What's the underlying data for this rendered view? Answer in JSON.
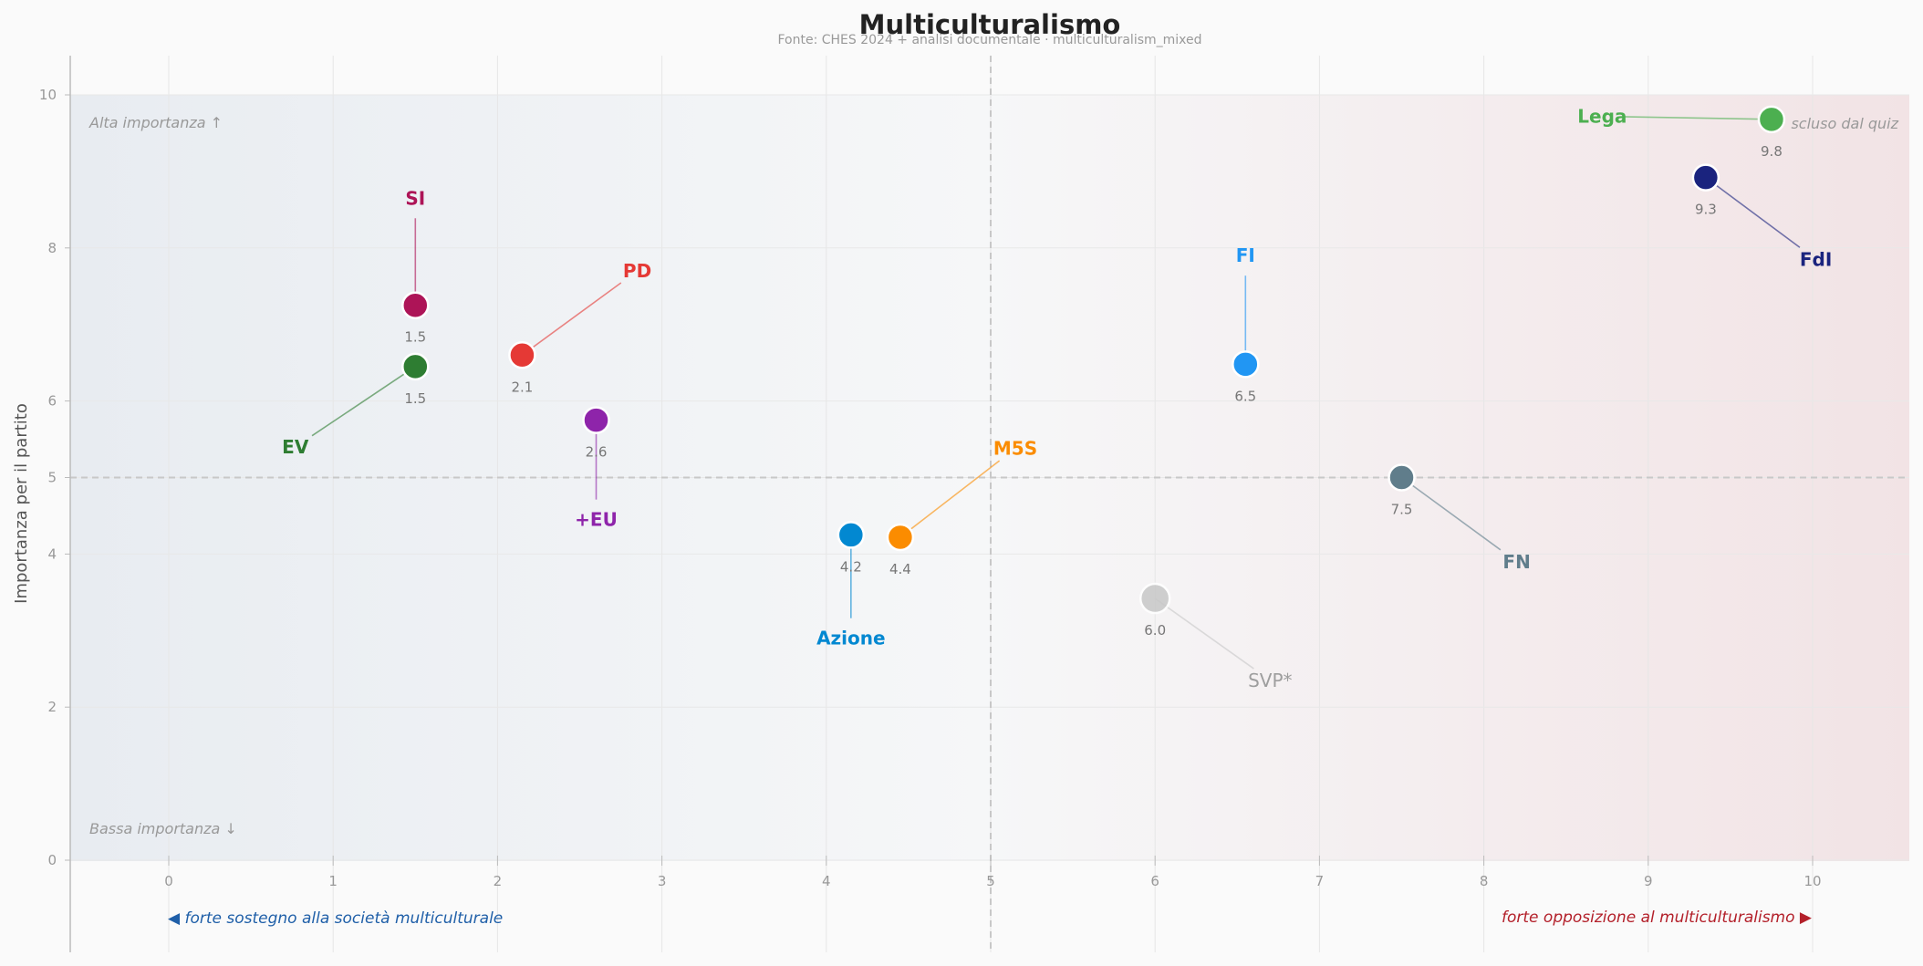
{
  "chart_data": {
    "type": "scatter",
    "title": "Multiculturalismo",
    "subtitle": "Fonte: CHES 2024 + analisi documentale  ·  multiculturalism_mixed",
    "xlabel": "",
    "ylabel": "Importanza per il partito",
    "xlim": [
      -0.6,
      10.6
    ],
    "ylim": [
      -1.2,
      10.5
    ],
    "x_ticks": [
      "0",
      "1",
      "2",
      "3",
      "4",
      "5",
      "6",
      "7",
      "8",
      "9",
      "10"
    ],
    "y_ticks": [
      "0",
      "2",
      "4",
      "5",
      "6",
      "8",
      "10"
    ],
    "grid": true,
    "reference_lines": {
      "x": 5,
      "y": 5
    },
    "corner_notes": {
      "high": "Alta importanza ↑",
      "low": "Bassa importanza ↓",
      "excluded": "scluso dal quiz"
    },
    "direction_labels": {
      "left": "◀  forte sostegno alla società multiculturale",
      "right": "forte opposizione al multiculturalismo  ▶"
    },
    "colors": {
      "left_accent": "#1f5fa8",
      "right_accent": "#b3202a",
      "reference_line": "#c8c8c8"
    },
    "points": [
      {
        "name": "SI",
        "x": 1.5,
        "y": 7.25,
        "value_label": "1.5",
        "color": "#ad1457",
        "label_x": 1.5,
        "label_y": 8.65
      },
      {
        "name": "EV",
        "x": 1.5,
        "y": 6.45,
        "value_label": "1.5",
        "color": "#2e7d32",
        "label_x": 0.77,
        "label_y": 5.4
      },
      {
        "name": "PD",
        "x": 2.15,
        "y": 6.6,
        "value_label": "2.1",
        "color": "#e53935",
        "label_x": 2.85,
        "label_y": 7.7
      },
      {
        "name": "+EU",
        "x": 2.6,
        "y": 5.75,
        "value_label": "2.6",
        "color": "#8e24aa",
        "label_x": 2.6,
        "label_y": 4.45
      },
      {
        "name": "Azione",
        "x": 4.15,
        "y": 4.25,
        "value_label": "4.2",
        "color": "#0288d1",
        "label_x": 4.15,
        "label_y": 2.9
      },
      {
        "name": "M5S",
        "x": 4.45,
        "y": 4.22,
        "value_label": "4.4",
        "color": "#fb8c00",
        "label_x": 5.15,
        "label_y": 5.38
      },
      {
        "name": "SVP*",
        "x": 6.0,
        "y": 3.42,
        "value_label": "6.0",
        "color": "#c8c8c8",
        "label_x": 6.7,
        "label_y": 2.35
      },
      {
        "name": "FI",
        "x": 6.55,
        "y": 6.48,
        "value_label": "6.5",
        "color": "#2196f3",
        "label_x": 6.55,
        "label_y": 7.9
      },
      {
        "name": "FN",
        "x": 7.5,
        "y": 5.0,
        "value_label": "7.5",
        "color": "#607d8b",
        "label_x": 8.2,
        "label_y": 3.9
      },
      {
        "name": "FdI",
        "x": 9.35,
        "y": 8.92,
        "value_label": "9.3",
        "color": "#1a237e",
        "label_x": 10.02,
        "label_y": 7.85
      },
      {
        "name": "Lega",
        "x": 9.75,
        "y": 9.68,
        "value_label": "9.8",
        "color": "#4caf50",
        "label_x": 8.72,
        "label_y": 9.72
      }
    ]
  }
}
